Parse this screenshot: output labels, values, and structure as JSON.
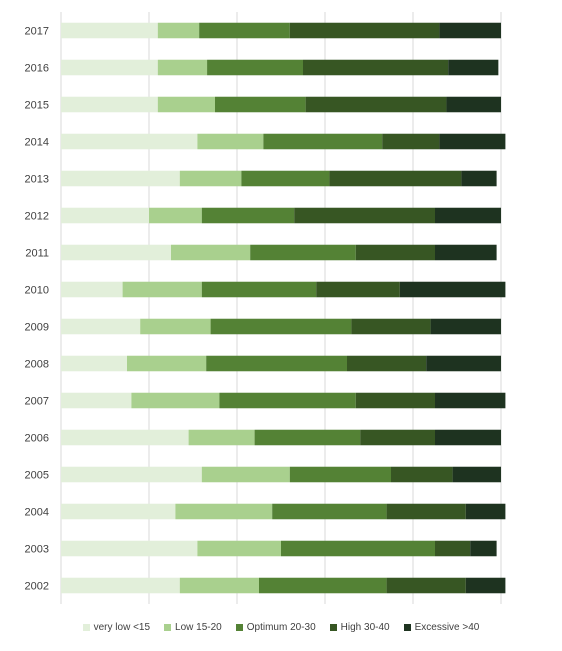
{
  "chart_data": {
    "type": "bar",
    "orientation": "horizontal",
    "stacked": true,
    "categories": [
      "2017",
      "2016",
      "2015",
      "2014",
      "2013",
      "2012",
      "2011",
      "2010",
      "2009",
      "2008",
      "2007",
      "2006",
      "2005",
      "2004",
      "2003",
      "2002"
    ],
    "series": [
      {
        "name": "very low <15",
        "color": "#e2efda",
        "values": [
          11,
          11,
          11,
          15.5,
          13.5,
          10,
          12.5,
          7,
          9,
          7.5,
          8,
          14.5,
          16,
          13,
          15.5,
          13.5
        ]
      },
      {
        "name": "Low 15-20",
        "color": "#a9d08e",
        "values": [
          4.7,
          5.6,
          6.5,
          7.5,
          7,
          6,
          9,
          9,
          8,
          9,
          10,
          7.5,
          10,
          11,
          9.5,
          9
        ]
      },
      {
        "name": "Optimum 20-30",
        "color": "#548235",
        "values": [
          10.3,
          10.9,
          10.3,
          13.5,
          10,
          10.5,
          12,
          13,
          16,
          16,
          15.5,
          12,
          11.5,
          13,
          17.5,
          14.5
        ]
      },
      {
        "name": "High 30-40",
        "color": "#375623",
        "values": [
          17,
          16.5,
          16,
          6.5,
          15,
          16,
          9,
          9.5,
          9,
          9,
          9,
          8.5,
          7,
          9,
          4,
          9
        ]
      },
      {
        "name": "Excessive >40",
        "color": "#1e3320",
        "values": [
          7,
          5.7,
          6.2,
          7.5,
          4,
          7.5,
          7,
          12,
          8,
          8.5,
          8,
          7.5,
          5.5,
          4.5,
          3,
          4.5
        ]
      }
    ],
    "xlim": [
      0,
      55
    ],
    "x_gridlines": [
      0,
      10,
      20,
      30,
      40,
      50
    ],
    "x_tick_labels_visible": false,
    "grid": true,
    "legend_position": "bottom"
  }
}
